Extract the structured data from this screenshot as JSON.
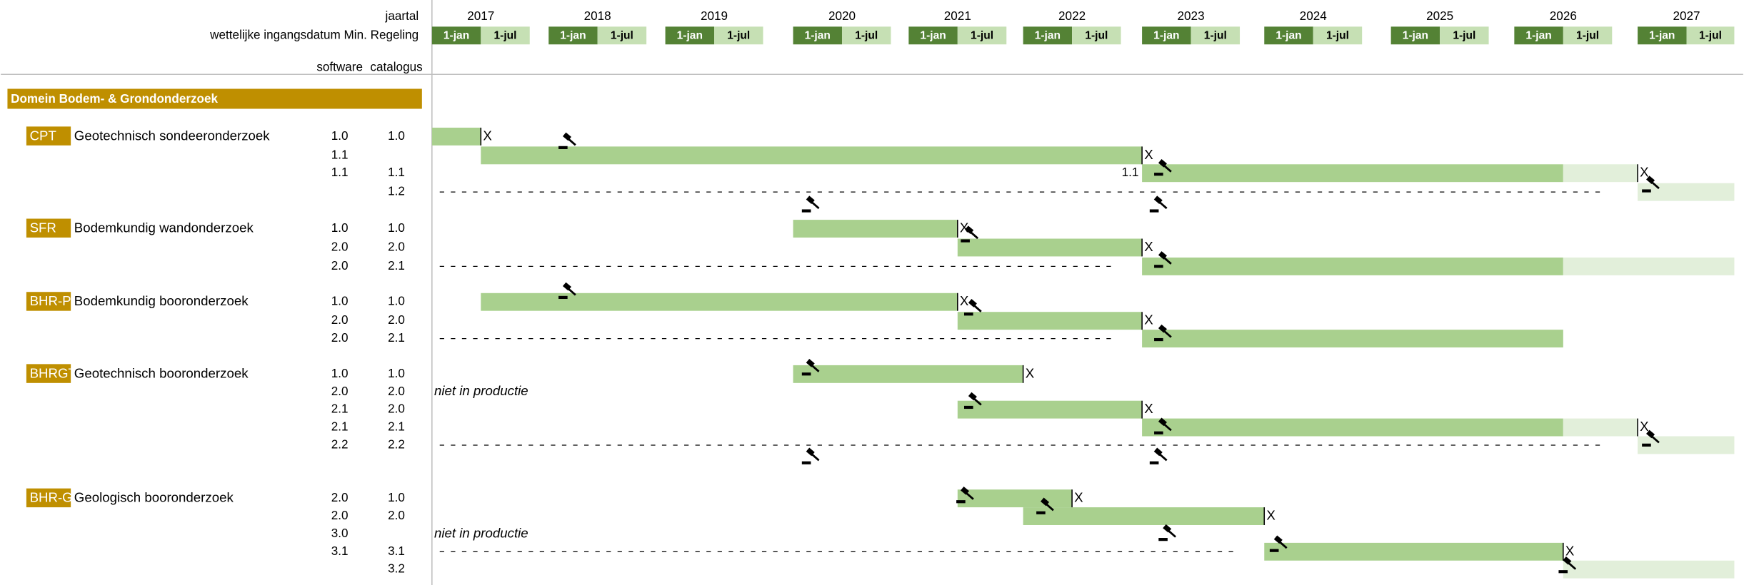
{
  "header": {
    "year_label": "jaartal",
    "date_label": "wettelijke ingangsdatum Min. Regeling",
    "software_label": "software",
    "catalogus_label": "catalogus",
    "years": [
      "2017",
      "2018",
      "2019",
      "2020",
      "2021",
      "2022",
      "2023",
      "2024",
      "2025",
      "2026",
      "2027"
    ],
    "halves": [
      "1-jan",
      "1-jul"
    ]
  },
  "section": "Domein Bodem- & Grondonderzoek",
  "end_marker": "X",
  "groups": [
    {
      "code": "CPT",
      "name": "Geotechnisch sondeeronderzoek",
      "rows": [
        {
          "software": "1.0",
          "catalogus": "1.0"
        },
        {
          "software": "1.1"
        },
        {
          "software": "1.1",
          "catalogus": "1.1",
          "note": "1.1"
        },
        {
          "catalogus": "1.2"
        }
      ]
    },
    {
      "code": "SFR",
      "name": "Bodemkundig wandonderzoek",
      "rows": [
        {
          "software": "1.0",
          "catalogus": "1.0"
        },
        {
          "software": "2.0",
          "catalogus": "2.0"
        },
        {
          "software": "2.0",
          "catalogus": "2.1"
        }
      ]
    },
    {
      "code": "BHR-P",
      "name": "Bodemkundig booronderzoek",
      "rows": [
        {
          "software": "1.0",
          "catalogus": "1.0"
        },
        {
          "software": "2.0",
          "catalogus": "2.0"
        },
        {
          "software": "2.0",
          "catalogus": "2.1"
        }
      ]
    },
    {
      "code": "BHRGT",
      "name": "Geotechnisch booronderzoek",
      "rows": [
        {
          "software": "1.0",
          "catalogus": "1.0"
        },
        {
          "software": "2.0",
          "catalogus": "2.0",
          "note": "niet in productie"
        },
        {
          "software": "2.1",
          "catalogus": "2.0"
        },
        {
          "software": "2.1",
          "catalogus": "2.1"
        },
        {
          "software": "2.2",
          "catalogus": "2.2"
        }
      ]
    },
    {
      "code": "BHR-G",
      "name": "Geologisch booronderzoek",
      "rows": [
        {
          "software": "2.0",
          "catalogus": "1.0"
        },
        {
          "software": "2.0",
          "catalogus": "2.0"
        },
        {
          "software": "3.0",
          "note": "niet in productie"
        },
        {
          "software": "3.1",
          "catalogus": "3.1"
        },
        {
          "catalogus": "3.2"
        }
      ]
    }
  ]
}
